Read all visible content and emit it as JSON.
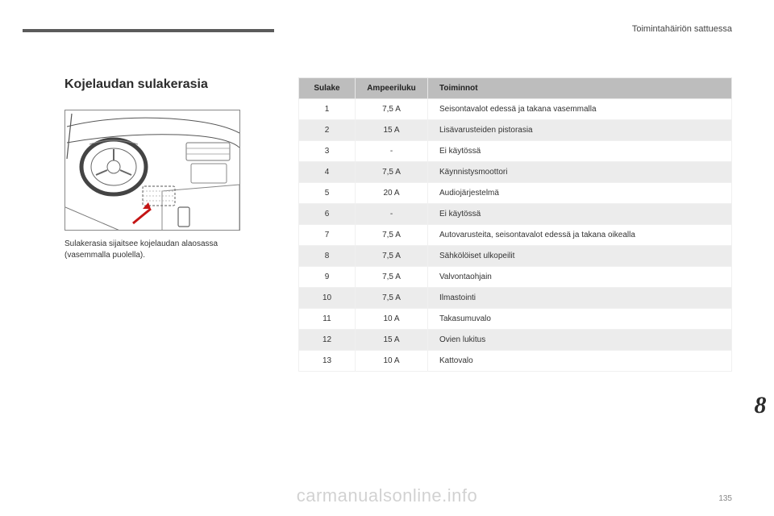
{
  "section_label": "Toimintahäiriön sattuessa",
  "heading": "Kojelaudan sulakerasia",
  "caption": "Sulakerasia sijaitsee kojelaudan alaosassa (vasemmalla puolella).",
  "tab_number": "8",
  "watermark": "carmanualsonline.info",
  "page_number": "135",
  "illustration": {
    "outline_color": "#888888",
    "background_color": "#ffffff",
    "arrow_color": "#c41414",
    "fusebox_stroke": "#777777",
    "fusebox_dash": "3,2"
  },
  "table": {
    "header_bg": "#bdbdbd",
    "row_alt_bg": "#ececec",
    "columns": [
      {
        "key": "fuse",
        "label": "Sulake",
        "width": 70,
        "align": "center"
      },
      {
        "key": "amp",
        "label": "Ampeeriluku",
        "width": 90,
        "align": "center"
      },
      {
        "key": "func",
        "label": "Toiminnot",
        "align": "left"
      }
    ],
    "rows": [
      {
        "fuse": "1",
        "amp": "7,5 A",
        "func": "Seisontavalot edessä ja takana vasemmalla"
      },
      {
        "fuse": "2",
        "amp": "15 A",
        "func": "Lisävarusteiden pistorasia"
      },
      {
        "fuse": "3",
        "amp": "-",
        "func": "Ei käytössä"
      },
      {
        "fuse": "4",
        "amp": "7,5 A",
        "func": "Käynnistysmoottori"
      },
      {
        "fuse": "5",
        "amp": "20 A",
        "func": "Audiojärjestelmä"
      },
      {
        "fuse": "6",
        "amp": "-",
        "func": "Ei käytössä"
      },
      {
        "fuse": "7",
        "amp": "7,5 A",
        "func": "Autovarusteita, seisontavalot edessä ja takana oikealla"
      },
      {
        "fuse": "8",
        "amp": "7,5 A",
        "func": "Sähkölöiset ulkopeilit"
      },
      {
        "fuse": "9",
        "amp": "7,5 A",
        "func": "Valvontaohjain"
      },
      {
        "fuse": "10",
        "amp": "7,5 A",
        "func": "Ilmastointi"
      },
      {
        "fuse": "11",
        "amp": "10 A",
        "func": "Takasumuvalo"
      },
      {
        "fuse": "12",
        "amp": "15 A",
        "func": "Ovien lukitus"
      },
      {
        "fuse": "13",
        "amp": "10 A",
        "func": "Kattovalo"
      }
    ]
  }
}
